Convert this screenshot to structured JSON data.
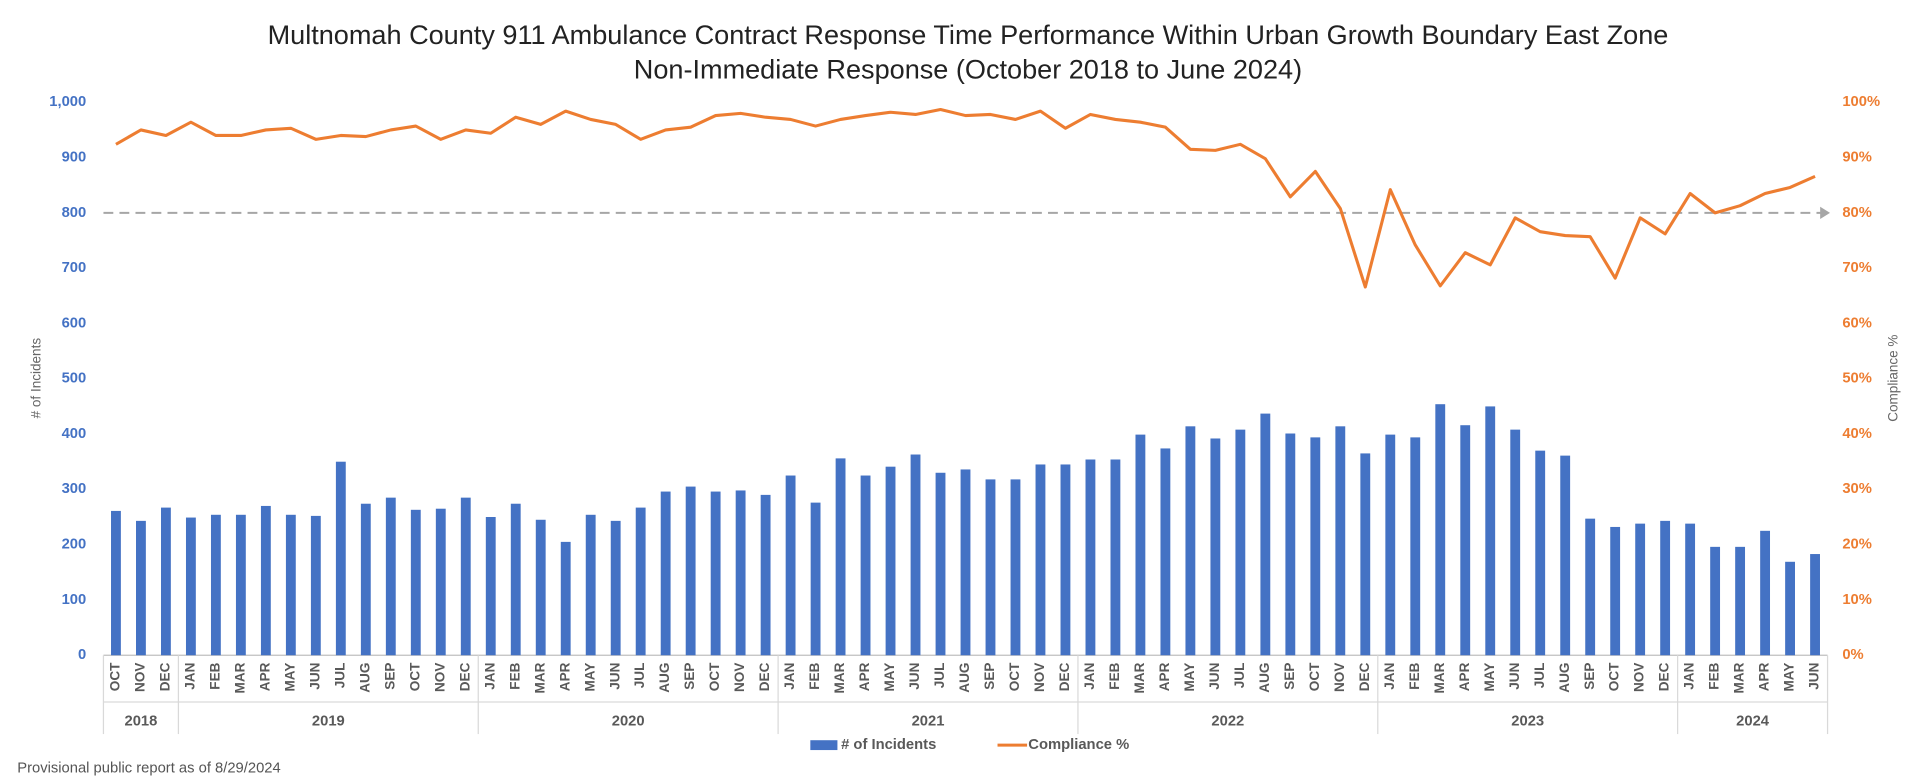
{
  "chart_data": {
    "type": "bar_line",
    "title": "Multnomah County 911 Ambulance Contract Response Time Performance Within Urban Growth Boundary East Zone",
    "subtitle": "Non-Immediate Response (October 2018 to June 2024)",
    "y_label": "# of Incidents",
    "y2_label": "Compliance %",
    "footnote": "Provisional public report as of 8/29/2024",
    "categories": [
      "OCT",
      "NOV",
      "DEC",
      "JAN",
      "FEB",
      "MAR",
      "APR",
      "MAY",
      "JUN",
      "JUL",
      "AUG",
      "SEP",
      "OCT",
      "NOV",
      "DEC",
      "JAN",
      "FEB",
      "MAR",
      "APR",
      "MAY",
      "JUN",
      "JUL",
      "AUG",
      "SEP",
      "OCT",
      "NOV",
      "DEC",
      "JAN",
      "FEB",
      "MAR",
      "APR",
      "MAY",
      "JUN",
      "JUL",
      "AUG",
      "SEP",
      "OCT",
      "NOV",
      "DEC",
      "JAN",
      "FEB",
      "MAR",
      "APR",
      "MAY",
      "JUN",
      "JUL",
      "AUG",
      "SEP",
      "OCT",
      "NOV",
      "DEC",
      "JAN",
      "FEB",
      "MAR",
      "APR",
      "MAY",
      "JUN",
      "JUL",
      "AUG",
      "SEP",
      "OCT",
      "NOV",
      "DEC",
      "JAN",
      "FEB",
      "MAR",
      "APR",
      "MAY",
      "JUN"
    ],
    "years": [
      "2018",
      "2018",
      "2018",
      "2019",
      "2019",
      "2019",
      "2019",
      "2019",
      "2019",
      "2019",
      "2019",
      "2019",
      "2019",
      "2019",
      "2019",
      "2020",
      "2020",
      "2020",
      "2020",
      "2020",
      "2020",
      "2020",
      "2020",
      "2020",
      "2020",
      "2020",
      "2020",
      "2021",
      "2021",
      "2021",
      "2021",
      "2021",
      "2021",
      "2021",
      "2021",
      "2021",
      "2021",
      "2021",
      "2021",
      "2022",
      "2022",
      "2022",
      "2022",
      "2022",
      "2022",
      "2022",
      "2022",
      "2022",
      "2022",
      "2022",
      "2022",
      "2023",
      "2023",
      "2023",
      "2023",
      "2023",
      "2023",
      "2023",
      "2023",
      "2023",
      "2023",
      "2023",
      "2023",
      "2024",
      "2024",
      "2024",
      "2024",
      "2024",
      "2024"
    ],
    "series": [
      {
        "name": "# of Incidents",
        "type": "bar",
        "color": "#4472c4",
        "values": [
          261,
          243,
          267,
          249,
          254,
          254,
          270,
          254,
          252,
          350,
          274,
          285,
          263,
          265,
          285,
          250,
          274,
          245,
          205,
          254,
          243,
          267,
          296,
          305,
          296,
          298,
          290,
          325,
          276,
          356,
          325,
          341,
          363,
          330,
          336,
          318,
          318,
          345,
          345,
          354,
          354,
          399,
          374,
          414,
          392,
          408,
          437,
          401,
          394,
          414,
          365,
          399,
          394,
          454,
          416,
          450,
          408,
          370,
          361,
          247,
          232,
          238,
          243,
          238,
          196,
          196,
          225,
          169,
          183
        ]
      },
      {
        "name": "Compliance %",
        "type": "line",
        "axis": "y2",
        "color": "#ed7d31",
        "values": [
          92.4,
          95,
          94,
          96.4,
          94,
          94,
          95,
          95.3,
          93.3,
          94,
          93.8,
          95,
          95.7,
          93.3,
          95,
          94.4,
          97.3,
          96,
          98.4,
          96.9,
          96,
          93.3,
          95,
          95.5,
          97.6,
          98,
          97.3,
          96.9,
          95.7,
          96.9,
          97.6,
          98.2,
          97.8,
          98.7,
          97.6,
          97.8,
          96.9,
          98.4,
          95.3,
          97.8,
          96.9,
          96.4,
          95.5,
          91.5,
          91.3,
          92.4,
          89.8,
          82.9,
          87.5,
          80.8,
          66.6,
          84.2,
          74.2,
          66.8,
          72.8,
          70.6,
          79.1,
          76.6,
          75.9,
          75.7,
          68.2,
          79.1,
          76.2,
          83.5,
          80,
          81.3,
          83.5,
          84.6,
          86.6
        ]
      }
    ],
    "reference_line": {
      "value": 80,
      "axis": "y2",
      "color": "#a6a6a6"
    },
    "ylim": [
      0,
      1000
    ],
    "yticks": [
      0,
      100,
      200,
      300,
      400,
      500,
      600,
      700,
      800,
      900,
      {
        "value": 1000,
        "label": "1,000"
      }
    ],
    "y2lim": [
      0,
      100
    ],
    "y2ticks": [
      {
        "value": 0,
        "label": "0%"
      },
      {
        "value": 10,
        "label": "10%"
      },
      {
        "value": 20,
        "label": "20%"
      },
      {
        "value": 30,
        "label": "30%"
      },
      {
        "value": 40,
        "label": "40%"
      },
      {
        "value": 50,
        "label": "50%"
      },
      {
        "value": 60,
        "label": "60%"
      },
      {
        "value": 70,
        "label": "70%"
      },
      {
        "value": 80,
        "label": "80%"
      },
      {
        "value": 90,
        "label": "90%"
      },
      {
        "value": 100,
        "label": "100%"
      }
    ],
    "grid": false,
    "legend": "bottom"
  }
}
